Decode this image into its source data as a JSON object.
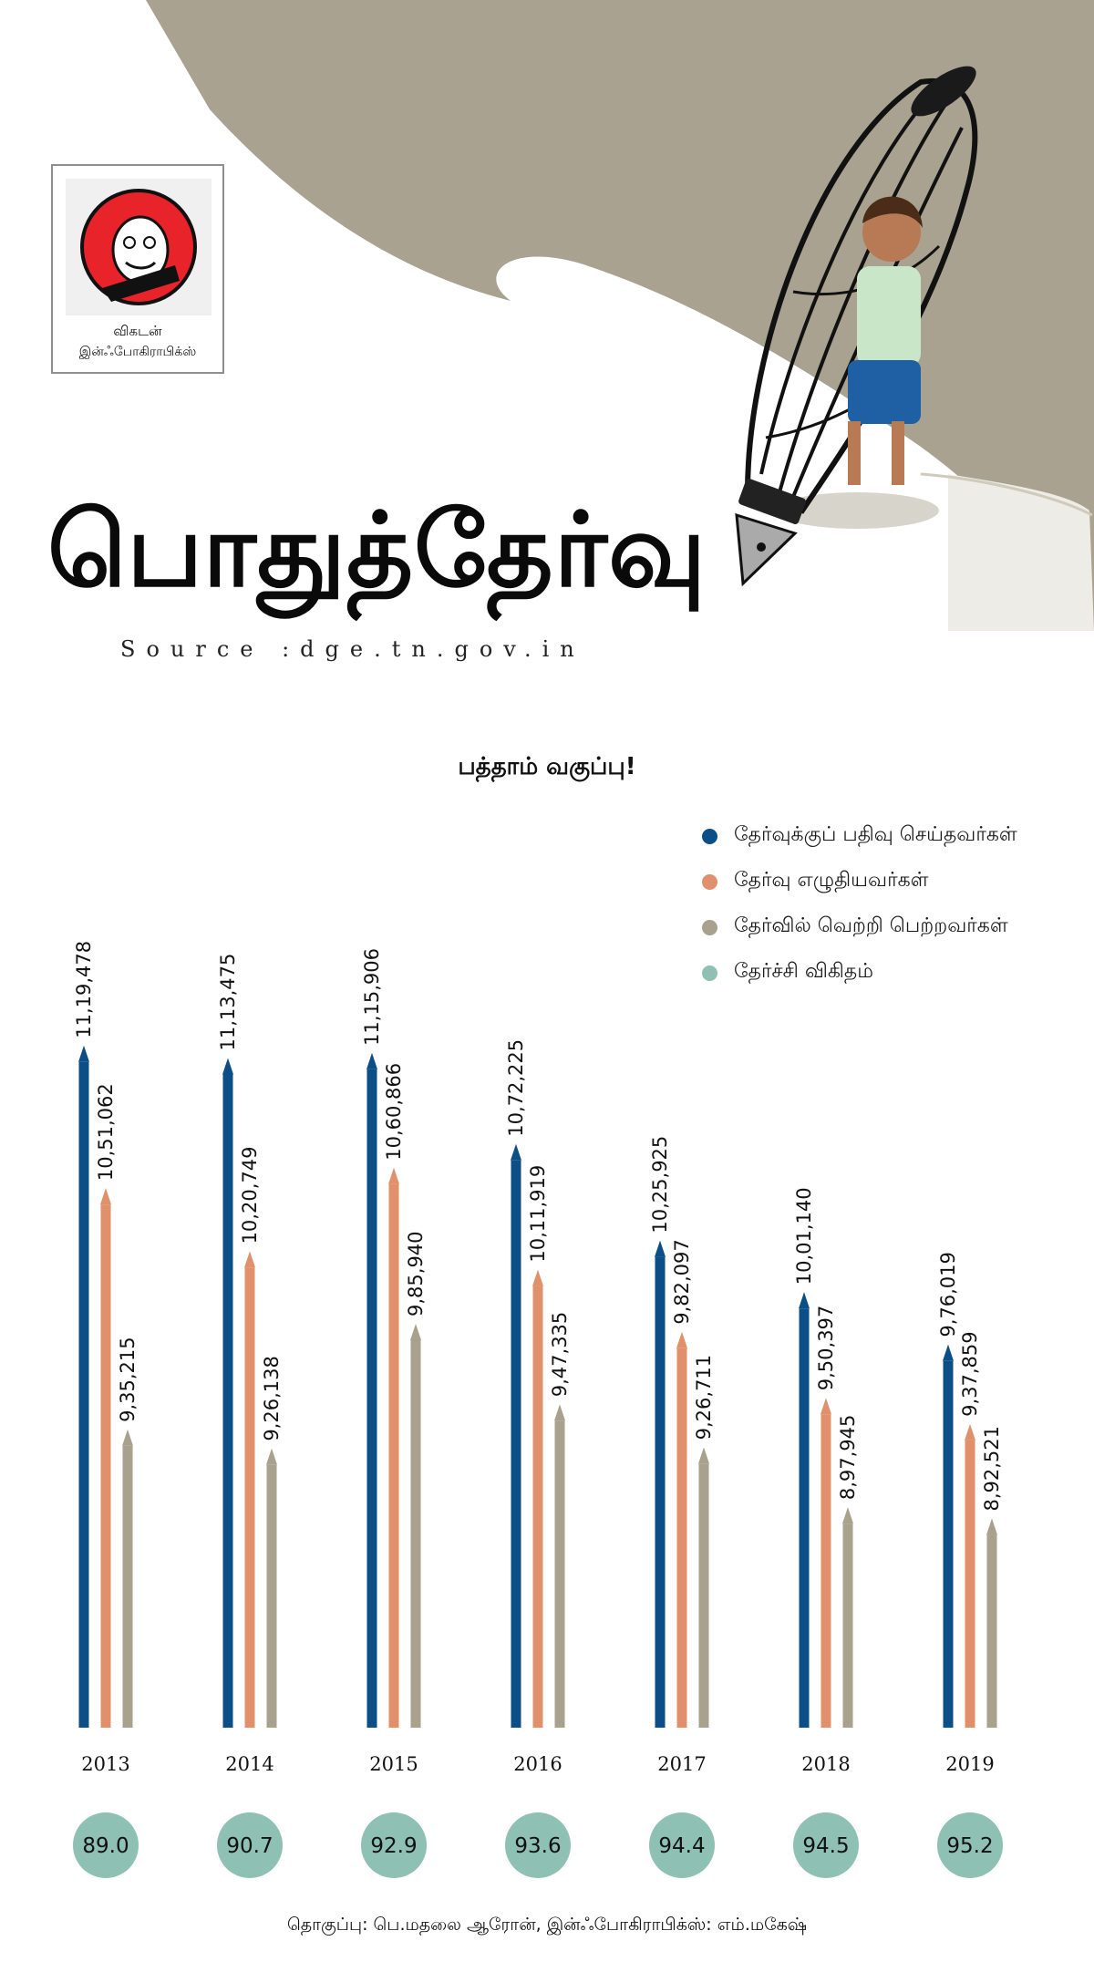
{
  "brand": {
    "name_line1": "விகடன்",
    "name_line2": "இன்ஃபோகிராபிக்ஸ்"
  },
  "title": "பொதுத்தேர்வு",
  "source": "Source :dge.tn.gov.in",
  "footer": "தொகுப்பு: பெ.மதலை ஆரோன், இன்ஃபோகிராபிக்ஸ்: எம்.மகேஷ்",
  "colors": {
    "registered": "#0b4f86",
    "appeared": "#e0906b",
    "passed": "#a8a18d",
    "pass_rate": "#8ec0b3",
    "hero_paper": "#a9a290"
  },
  "chart_data": {
    "type": "bar",
    "title": "பத்தாம் வகுப்பு!",
    "categories": [
      "2013",
      "2014",
      "2015",
      "2016",
      "2017",
      "2018",
      "2019"
    ],
    "legend_position": "top-right",
    "grid": false,
    "ylim": [
      0,
      1150000
    ],
    "series": [
      {
        "name": "தேர்வுக்குப் பதிவு செய்தவர்கள்",
        "color": "#0b4f86",
        "values": [
          1119478,
          1113475,
          1115906,
          1072225,
          1025925,
          1001140,
          976019
        ],
        "labels": [
          "11,19,478",
          "11,13,475",
          "11,15,906",
          "10,72,225",
          "10,25,925",
          "10,01,140",
          "9,76,019"
        ]
      },
      {
        "name": "தேர்வு எழுதியவர்கள்",
        "color": "#e0906b",
        "values": [
          1051062,
          1020749,
          1060866,
          1011919,
          982097,
          950397,
          937859
        ],
        "labels": [
          "10,51,062",
          "10,20,749",
          "10,60,866",
          "10,11,919",
          "9,82,097",
          "9,50,397",
          "9,37,859"
        ]
      },
      {
        "name": "தேர்வில் வெற்றி பெற்றவர்கள்",
        "color": "#a8a18d",
        "values": [
          935215,
          926138,
          985940,
          947335,
          926711,
          897945,
          892521
        ],
        "labels": [
          "9,35,215",
          "9,26,138",
          "9,85,940",
          "9,47,335",
          "9,26,711",
          "8,97,945",
          "8,92,521"
        ]
      },
      {
        "name": "தேர்ச்சி விகிதம்",
        "color": "#8ec0b3",
        "values": [
          89.0,
          90.7,
          92.9,
          93.6,
          94.4,
          94.5,
          95.2
        ],
        "labels": [
          "89.0",
          "90.7",
          "92.9",
          "93.6",
          "94.4",
          "94.5",
          "95.2"
        ]
      }
    ]
  }
}
